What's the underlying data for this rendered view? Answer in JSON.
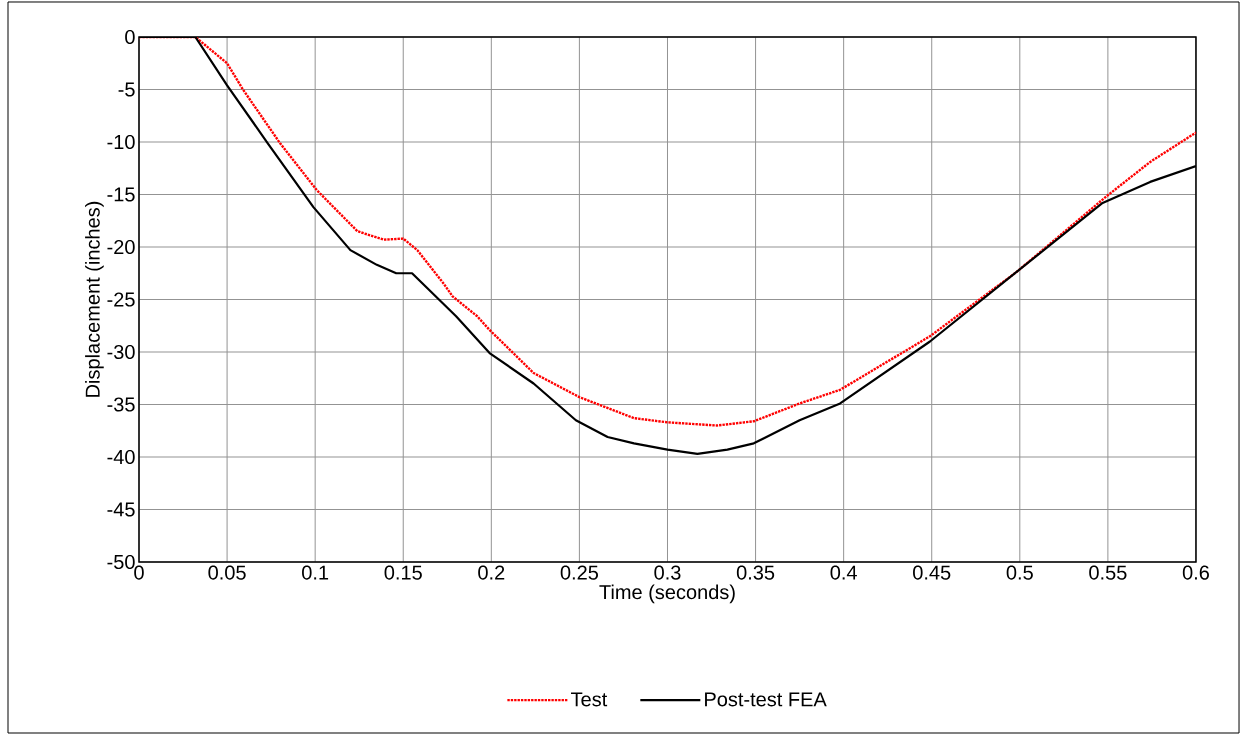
{
  "chart_data": {
    "type": "line",
    "xlabel": "Time (seconds)",
    "ylabel": "Displacement (inches)",
    "xlim": [
      0,
      0.6
    ],
    "ylim": [
      -50,
      0
    ],
    "xticks": [
      0,
      0.05,
      0.1,
      0.15,
      0.2,
      0.25,
      0.3,
      0.35,
      0.4,
      0.45,
      0.5,
      0.55,
      0.6
    ],
    "yticks": [
      -50,
      -45,
      -40,
      -35,
      -30,
      -25,
      -20,
      -15,
      -10,
      -5,
      0
    ],
    "grid": true,
    "legend": "bottom",
    "series": [
      {
        "name": "Test",
        "color": "#ff0000",
        "line_style": "dotted",
        "x": [
          0,
          0.032,
          0.05,
          0.059,
          0.08,
          0.101,
          0.124,
          0.139,
          0.15,
          0.158,
          0.173,
          0.178,
          0.192,
          0.199,
          0.224,
          0.25,
          0.281,
          0.3,
          0.328,
          0.349,
          0.375,
          0.398,
          0.449,
          0.498,
          0.549,
          0.574,
          0.6
        ],
        "values": [
          0,
          0,
          -2.5,
          -5.0,
          -10.1,
          -14.6,
          -18.5,
          -19.3,
          -19.2,
          -20.3,
          -23.5,
          -24.7,
          -26.6,
          -27.9,
          -32.0,
          -34.3,
          -36.3,
          -36.7,
          -37.0,
          -36.6,
          -34.9,
          -33.6,
          -28.5,
          -22.4,
          -15.2,
          -11.9,
          -9.1
        ]
      },
      {
        "name": "Post-test FEA",
        "color": "#000000",
        "line_style": "solid",
        "x": [
          0,
          0.032,
          0.05,
          0.073,
          0.099,
          0.12,
          0.135,
          0.146,
          0.155,
          0.18,
          0.199,
          0.224,
          0.248,
          0.266,
          0.281,
          0.3,
          0.317,
          0.334,
          0.349,
          0.375,
          0.398,
          0.449,
          0.498,
          0.547,
          0.574,
          0.6
        ],
        "values": [
          0,
          0,
          -4.6,
          -10.1,
          -16.2,
          -20.3,
          -21.7,
          -22.5,
          -22.5,
          -26.6,
          -30.1,
          -33.0,
          -36.5,
          -38.1,
          -38.7,
          -39.3,
          -39.7,
          -39.3,
          -38.7,
          -36.5,
          -34.9,
          -29.0,
          -22.4,
          -15.8,
          -13.8,
          -12.3
        ]
      }
    ]
  }
}
